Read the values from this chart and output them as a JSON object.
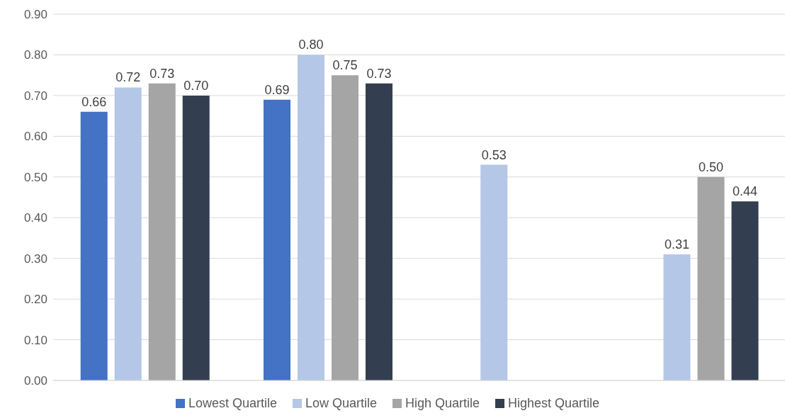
{
  "chart_data": {
    "type": "bar",
    "categories": [
      null,
      null,
      null,
      null
    ],
    "series": [
      {
        "name": "Lowest Quartile",
        "color": "#4472c4",
        "values": [
          0.66,
          0.69,
          null,
          null
        ],
        "value_labels": [
          "0.66",
          "0.69",
          null,
          null
        ]
      },
      {
        "name": "Low Quartile",
        "color": "#b4c7e7",
        "values": [
          0.72,
          0.8,
          0.53,
          0.31
        ],
        "value_labels": [
          "0.72",
          "0.80",
          "0.53",
          "0.31"
        ]
      },
      {
        "name": "High Quartile",
        "color": "#a5a5a5",
        "values": [
          0.73,
          0.75,
          null,
          0.5
        ],
        "value_labels": [
          "0.73",
          "0.75",
          null,
          "0.50"
        ]
      },
      {
        "name": "Highest Quartile",
        "color": "#333f50",
        "values": [
          0.7,
          0.73,
          null,
          0.44
        ],
        "value_labels": [
          "0.70",
          "0.73",
          null,
          "0.44"
        ]
      }
    ],
    "ylim": [
      0,
      0.9
    ],
    "yticks": [
      {
        "value": 0,
        "label": "0.00"
      },
      {
        "value": 0.1,
        "label": "0.10"
      },
      {
        "value": 0.2,
        "label": "0.20"
      },
      {
        "value": 0.3,
        "label": "0.30"
      },
      {
        "value": 0.4,
        "label": "0.40"
      },
      {
        "value": 0.5,
        "label": "0.50"
      },
      {
        "value": 0.6,
        "label": "0.60"
      },
      {
        "value": 0.7,
        "label": "0.70"
      },
      {
        "value": 0.8,
        "label": "0.80"
      },
      {
        "value": 0.9,
        "label": "0.90"
      }
    ],
    "grid": "y",
    "legend": "bottom",
    "tick_labels": "y"
  }
}
